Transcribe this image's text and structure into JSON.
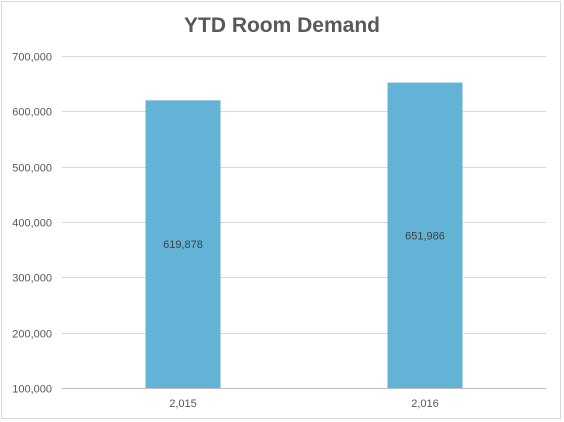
{
  "chart_data": {
    "type": "bar",
    "title": "YTD Room Demand",
    "categories": [
      "2,015",
      "2,016"
    ],
    "values": [
      619878,
      651986
    ],
    "data_labels": [
      "619,878",
      "651,986"
    ],
    "ylim": [
      100000,
      700000
    ],
    "yticks": [
      100000,
      200000,
      300000,
      400000,
      500000,
      600000,
      700000
    ],
    "ytick_labels": [
      "100,000",
      "200,000",
      "300,000",
      "400,000",
      "500,000",
      "600,000",
      "700,000"
    ],
    "xlabel": "",
    "ylabel": "",
    "grid": true,
    "legend": "none",
    "colors": {
      "bar": "#63b3d6",
      "grid": "#d9d9d9",
      "axis": "#bfbfbf",
      "text": "#595959"
    }
  }
}
